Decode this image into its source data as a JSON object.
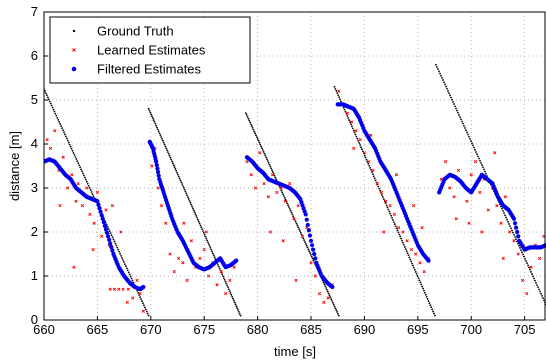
{
  "chart_data": {
    "type": "scatter",
    "title": "",
    "xlabel": "time [s]",
    "ylabel": "distance [m]",
    "xlim": [
      660,
      707
    ],
    "ylim": [
      0,
      7
    ],
    "xticks": [
      660,
      665,
      670,
      675,
      680,
      685,
      690,
      695,
      700,
      705
    ],
    "yticks": [
      0,
      1,
      2,
      3,
      4,
      5,
      6,
      7
    ],
    "grid": true,
    "legend_position": "top-left",
    "series": [
      {
        "name": "Ground Truth",
        "marker": "dot",
        "color": "#000000",
        "segments": [
          {
            "x": [
              660.0,
              669.8
            ],
            "y": [
              5.25,
              0.1
            ]
          },
          {
            "x": [
              669.8,
              678.4
            ],
            "y": [
              4.8,
              0.1
            ]
          },
          {
            "x": [
              678.9,
              687.6
            ],
            "y": [
              4.7,
              0.1
            ]
          },
          {
            "x": [
              687.2,
              696.6
            ],
            "y": [
              5.3,
              0.1
            ]
          },
          {
            "x": [
              696.7,
              707.0
            ],
            "y": [
              5.8,
              0.35
            ]
          }
        ]
      },
      {
        "name": "Learned Estimates",
        "marker": "x-small",
        "color": "#ff0000",
        "points": [
          [
            660.3,
            4.1
          ],
          [
            660.6,
            3.9
          ],
          [
            661.0,
            4.3
          ],
          [
            661.4,
            3.4
          ],
          [
            661.8,
            3.7
          ],
          [
            662.2,
            3.0
          ],
          [
            662.6,
            3.3
          ],
          [
            663.0,
            2.7
          ],
          [
            663.2,
            3.1
          ],
          [
            663.6,
            2.6
          ],
          [
            664.0,
            3.0
          ],
          [
            664.3,
            2.4
          ],
          [
            664.7,
            2.2
          ],
          [
            665.0,
            2.9
          ],
          [
            665.4,
            1.9
          ],
          [
            665.8,
            2.5
          ],
          [
            666.1,
            1.7
          ],
          [
            666.4,
            2.6
          ],
          [
            666.8,
            1.3
          ],
          [
            667.2,
            2.0
          ],
          [
            667.5,
            1.0
          ],
          [
            667.9,
            0.7
          ],
          [
            668.3,
            0.5
          ],
          [
            668.7,
            0.9
          ],
          [
            669.0,
            0.6
          ],
          [
            669.3,
            0.2
          ],
          [
            661.5,
            2.6
          ],
          [
            662.8,
            1.2
          ],
          [
            664.6,
            1.6
          ],
          [
            666.2,
            0.7
          ],
          [
            666.6,
            0.7
          ],
          [
            667.0,
            0.7
          ],
          [
            667.4,
            0.7
          ],
          [
            667.8,
            0.4
          ],
          [
            670.1,
            3.5
          ],
          [
            670.4,
            3.9
          ],
          [
            670.7,
            3.0
          ],
          [
            671.0,
            2.6
          ],
          [
            671.4,
            2.2
          ],
          [
            671.8,
            1.5
          ],
          [
            672.2,
            1.1
          ],
          [
            672.6,
            1.4
          ],
          [
            673.0,
            1.3
          ],
          [
            673.4,
            0.9
          ],
          [
            673.8,
            1.8
          ],
          [
            674.2,
            1.2
          ],
          [
            674.6,
            1.4
          ],
          [
            675.0,
            1.6
          ],
          [
            675.4,
            1.0
          ],
          [
            675.8,
            1.3
          ],
          [
            676.2,
            0.8
          ],
          [
            676.6,
            1.1
          ],
          [
            677.0,
            0.6
          ],
          [
            677.4,
            0.9
          ],
          [
            677.8,
            1.2
          ],
          [
            673.1,
            2.2
          ],
          [
            675.2,
            2.0
          ],
          [
            679.0,
            3.6
          ],
          [
            679.4,
            3.3
          ],
          [
            679.8,
            3.0
          ],
          [
            680.2,
            3.8
          ],
          [
            680.6,
            3.1
          ],
          [
            681.0,
            2.8
          ],
          [
            681.4,
            3.3
          ],
          [
            681.8,
            2.9
          ],
          [
            682.2,
            3.0
          ],
          [
            682.6,
            2.7
          ],
          [
            683.0,
            3.1
          ],
          [
            683.4,
            2.3
          ],
          [
            683.8,
            2.6
          ],
          [
            684.2,
            1.9
          ],
          [
            684.6,
            2.1
          ],
          [
            685.0,
            1.3
          ],
          [
            685.4,
            1.0
          ],
          [
            685.8,
            0.6
          ],
          [
            686.2,
            0.4
          ],
          [
            686.6,
            0.5
          ],
          [
            687.0,
            0.8
          ],
          [
            681.2,
            2.0
          ],
          [
            682.4,
            1.8
          ],
          [
            683.6,
            0.9
          ],
          [
            687.6,
            5.2
          ],
          [
            688.0,
            4.9
          ],
          [
            688.4,
            4.7
          ],
          [
            688.8,
            4.5
          ],
          [
            689.2,
            4.3
          ],
          [
            689.6,
            4.1
          ],
          [
            690.0,
            3.8
          ],
          [
            690.4,
            3.6
          ],
          [
            690.8,
            3.4
          ],
          [
            691.2,
            3.1
          ],
          [
            691.6,
            2.9
          ],
          [
            692.0,
            2.7
          ],
          [
            692.4,
            2.6
          ],
          [
            692.8,
            2.4
          ],
          [
            693.2,
            2.1
          ],
          [
            693.6,
            2.0
          ],
          [
            694.0,
            1.8
          ],
          [
            694.4,
            1.6
          ],
          [
            694.8,
            1.5
          ],
          [
            695.2,
            1.3
          ],
          [
            695.6,
            1.1
          ],
          [
            696.0,
            1.4
          ],
          [
            689.0,
            3.9
          ],
          [
            690.6,
            4.2
          ],
          [
            691.8,
            2.0
          ],
          [
            693.0,
            3.3
          ],
          [
            694.6,
            2.6
          ],
          [
            695.4,
            2.1
          ],
          [
            697.2,
            3.2
          ],
          [
            697.6,
            3.6
          ],
          [
            698.0,
            3.0
          ],
          [
            698.4,
            2.8
          ],
          [
            698.8,
            3.4
          ],
          [
            699.2,
            3.1
          ],
          [
            699.6,
            2.7
          ],
          [
            700.0,
            3.3
          ],
          [
            700.4,
            3.6
          ],
          [
            700.8,
            2.9
          ],
          [
            701.2,
            3.2
          ],
          [
            701.6,
            2.5
          ],
          [
            702.0,
            3.0
          ],
          [
            702.4,
            2.6
          ],
          [
            702.8,
            2.2
          ],
          [
            703.2,
            2.8
          ],
          [
            703.6,
            2.0
          ],
          [
            704.0,
            1.8
          ],
          [
            704.4,
            1.5
          ],
          [
            704.8,
            0.9
          ],
          [
            705.2,
            0.6
          ],
          [
            705.6,
            1.2
          ],
          [
            706.0,
            1.7
          ],
          [
            706.4,
            1.4
          ],
          [
            706.8,
            1.9
          ],
          [
            698.6,
            2.3
          ],
          [
            699.8,
            2.2
          ],
          [
            701.0,
            2.0
          ],
          [
            702.2,
            3.8
          ],
          [
            703.0,
            1.4
          ]
        ]
      },
      {
        "name": "Filtered Estimates",
        "marker": "dot-large",
        "color": "#0000ee",
        "segments": [
          {
            "x": [
              660.0,
              660.5,
              661.0,
              661.5,
              662.0,
              662.5,
              663.0,
              663.5,
              664.0,
              664.5,
              665.0,
              665.5,
              666.0,
              666.5,
              667.0,
              667.5,
              668.0,
              668.5,
              669.0,
              669.3
            ],
            "y": [
              3.6,
              3.65,
              3.6,
              3.45,
              3.3,
              3.2,
              3.0,
              2.9,
              2.8,
              2.75,
              2.7,
              2.3,
              1.9,
              1.5,
              1.2,
              1.0,
              0.85,
              0.75,
              0.7,
              0.75
            ]
          },
          {
            "x": [
              669.9,
              670.2,
              670.5,
              670.8,
              671.2,
              671.6,
              672.0,
              672.5,
              673.0,
              673.5,
              674.0,
              674.5,
              675.0,
              675.5,
              676.0,
              676.5,
              677.0,
              677.5,
              678.0
            ],
            "y": [
              4.05,
              3.9,
              3.6,
              3.2,
              2.9,
              2.6,
              2.3,
              2.0,
              1.8,
              1.55,
              1.3,
              1.2,
              1.15,
              1.2,
              1.3,
              1.4,
              1.2,
              1.25,
              1.35
            ]
          },
          {
            "x": [
              679.0,
              679.5,
              680.0,
              680.5,
              681.0,
              681.5,
              682.0,
              682.5,
              683.0,
              683.5,
              684.0,
              684.5,
              685.0,
              685.5,
              686.0,
              686.5,
              687.0
            ],
            "y": [
              3.7,
              3.6,
              3.45,
              3.35,
              3.2,
              3.15,
              3.1,
              3.05,
              3.0,
              2.9,
              2.75,
              2.4,
              1.8,
              1.3,
              1.0,
              0.85,
              0.75
            ]
          },
          {
            "x": [
              687.5,
              688.0,
              688.5,
              689.0,
              689.5,
              690.0,
              690.5,
              691.0,
              691.5,
              692.0,
              692.5,
              693.0,
              693.5,
              694.0,
              694.5,
              695.0,
              695.5,
              696.0
            ],
            "y": [
              4.9,
              4.9,
              4.85,
              4.8,
              4.6,
              4.3,
              4.1,
              3.9,
              3.6,
              3.4,
              3.2,
              2.9,
              2.6,
              2.3,
              2.0,
              1.7,
              1.5,
              1.35
            ]
          },
          {
            "x": [
              697.0,
              697.5,
              698.0,
              698.5,
              699.0,
              699.5,
              700.0,
              700.5,
              701.0,
              701.5,
              702.0,
              702.5,
              703.0,
              703.5,
              704.0,
              704.5,
              705.0,
              705.5,
              706.0,
              706.5,
              707.0
            ],
            "y": [
              2.9,
              3.2,
              3.3,
              3.25,
              3.15,
              3.0,
              2.9,
              3.1,
              3.3,
              3.2,
              3.1,
              2.8,
              2.6,
              2.5,
              2.3,
              1.8,
              1.6,
              1.65,
              1.65,
              1.65,
              1.7
            ]
          }
        ]
      }
    ]
  }
}
